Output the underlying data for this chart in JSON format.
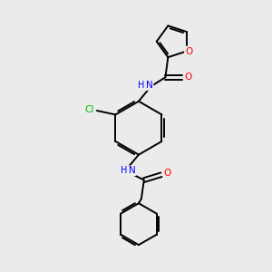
{
  "bg_color": "#ebebeb",
  "bond_color": "#000000",
  "atom_colors": {
    "O": "#ff0000",
    "N": "#0000ff",
    "Cl": "#00bb00",
    "C": "#000000"
  },
  "lw": 1.4,
  "fontsize": 7.5
}
